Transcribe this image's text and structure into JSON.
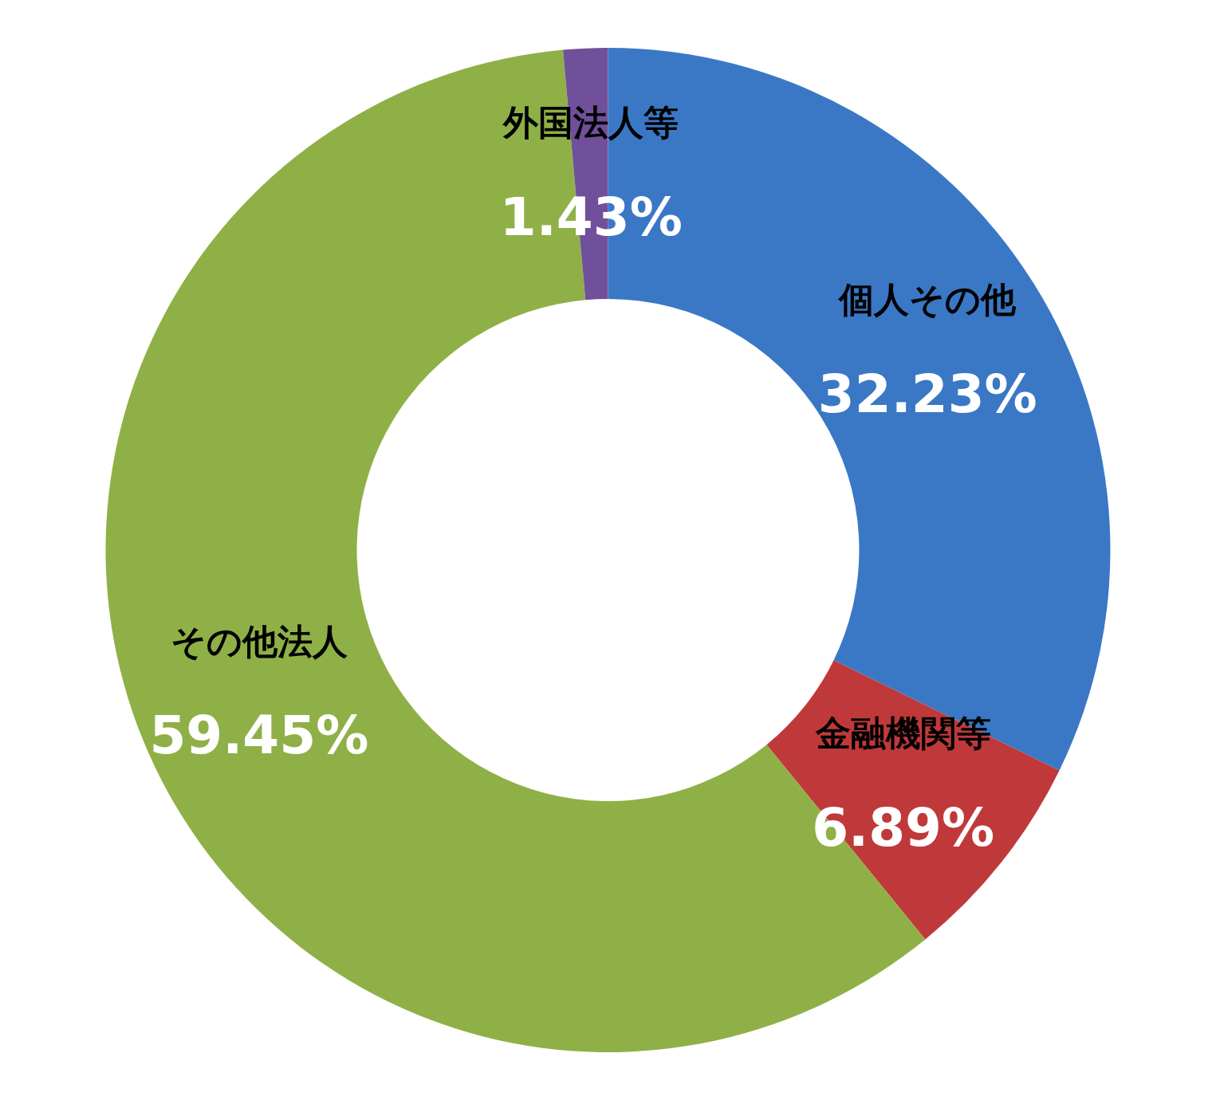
{
  "chart_data": {
    "type": "donut",
    "categories": [
      "個人その他",
      "金融機関等",
      "その他法人",
      "外国法人等"
    ],
    "values": [
      32.23,
      6.89,
      59.45,
      1.43
    ],
    "value_labels": [
      "32.23%",
      "6.89%",
      "59.45%",
      "1.43%"
    ],
    "colors": [
      "#3a78c6",
      "#c0393a",
      "#8fb046",
      "#70509a"
    ],
    "legend": false
  }
}
